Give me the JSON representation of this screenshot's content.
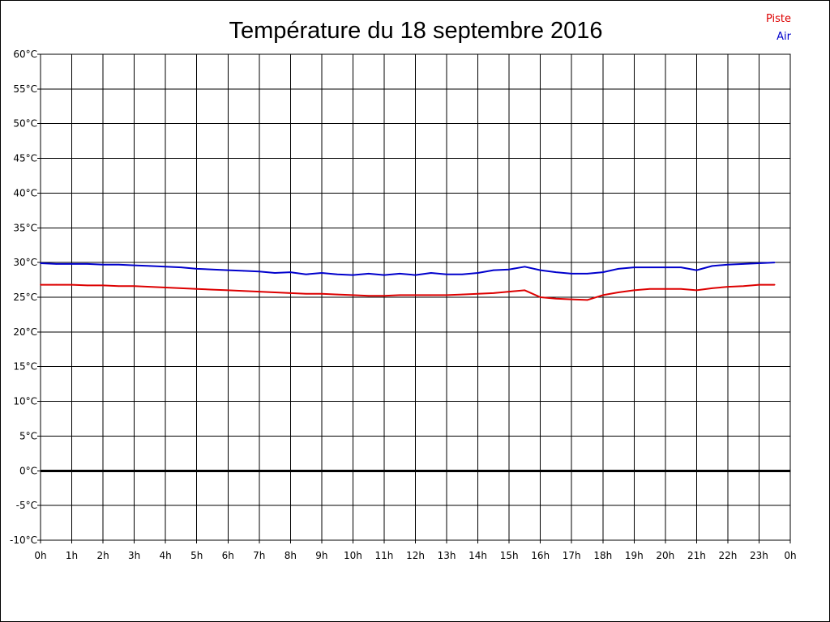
{
  "chart_data": {
    "type": "line",
    "title": "Température du 18 septembre 2016",
    "xlabel": "",
    "ylabel": "",
    "x_ticks": [
      "0h",
      "1h",
      "2h",
      "3h",
      "4h",
      "5h",
      "6h",
      "7h",
      "8h",
      "9h",
      "10h",
      "11h",
      "12h",
      "13h",
      "14h",
      "15h",
      "16h",
      "17h",
      "18h",
      "19h",
      "20h",
      "21h",
      "22h",
      "23h",
      "0h"
    ],
    "xlim": [
      0,
      24
    ],
    "ylim": [
      -10,
      60
    ],
    "y_ticks": [
      "60°C",
      "55°C",
      "50°C",
      "45°C",
      "40°C",
      "35°C",
      "30°C",
      "25°C",
      "20°C",
      "15°C",
      "10°C",
      "5°C",
      "0°C",
      "-5°C",
      "-10°C"
    ],
    "grid": true,
    "legend_position": "top-right",
    "zero_line": 0,
    "series": [
      {
        "name": "Piste",
        "color": "#dd0000",
        "x": [
          0,
          0.5,
          1,
          1.5,
          2,
          2.5,
          3,
          3.5,
          4,
          4.5,
          5,
          5.5,
          6,
          6.5,
          7,
          7.5,
          8,
          8.5,
          9,
          9.5,
          10,
          10.5,
          11,
          11.5,
          12,
          12.5,
          13,
          13.5,
          14,
          14.5,
          15,
          15.5,
          16,
          16.5,
          17,
          17.5,
          18,
          18.5,
          19,
          19.5,
          20,
          20.5,
          21,
          21.5,
          22,
          22.5,
          23,
          23.5
        ],
        "values": [
          26.8,
          26.8,
          26.8,
          26.7,
          26.7,
          26.6,
          26.6,
          26.5,
          26.4,
          26.3,
          26.2,
          26.1,
          26.0,
          25.9,
          25.8,
          25.7,
          25.6,
          25.5,
          25.5,
          25.4,
          25.3,
          25.2,
          25.2,
          25.3,
          25.3,
          25.3,
          25.3,
          25.4,
          25.5,
          25.6,
          25.8,
          26.0,
          25.0,
          24.8,
          24.7,
          24.6,
          25.3,
          25.7,
          26.0,
          26.2,
          26.2,
          26.2,
          26.0,
          26.3,
          26.5,
          26.6,
          26.8,
          26.8
        ]
      },
      {
        "name": "Air",
        "color": "#0000cc",
        "x": [
          0,
          0.5,
          1,
          1.5,
          2,
          2.5,
          3,
          3.5,
          4,
          4.5,
          5,
          5.5,
          6,
          6.5,
          7,
          7.5,
          8,
          8.5,
          9,
          9.5,
          10,
          10.5,
          11,
          11.5,
          12,
          12.5,
          13,
          13.5,
          14,
          14.5,
          15,
          15.5,
          16,
          16.5,
          17,
          17.5,
          18,
          18.5,
          19,
          19.5,
          20,
          20.5,
          21,
          21.5,
          22,
          22.5,
          23,
          23.5
        ],
        "values": [
          29.9,
          29.8,
          29.8,
          29.8,
          29.7,
          29.7,
          29.6,
          29.5,
          29.4,
          29.3,
          29.1,
          29.0,
          28.9,
          28.8,
          28.7,
          28.5,
          28.6,
          28.3,
          28.5,
          28.3,
          28.2,
          28.4,
          28.2,
          28.4,
          28.2,
          28.5,
          28.3,
          28.3,
          28.5,
          28.9,
          29.0,
          29.4,
          28.9,
          28.6,
          28.4,
          28.4,
          28.6,
          29.1,
          29.3,
          29.3,
          29.3,
          29.3,
          28.9,
          29.5,
          29.7,
          29.8,
          29.9,
          30.0
        ]
      }
    ]
  }
}
